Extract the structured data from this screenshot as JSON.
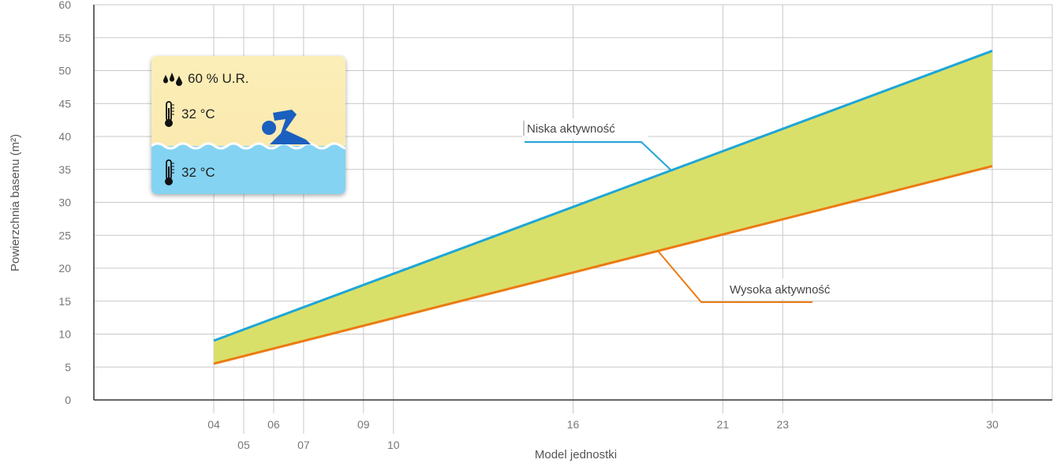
{
  "chart_data": {
    "type": "area",
    "xlabel": "Model jednostki",
    "ylabel": "Powierzchnia basenu (m²)",
    "ylim": [
      0,
      60
    ],
    "yticks": [
      0,
      5,
      10,
      15,
      20,
      25,
      30,
      35,
      40,
      45,
      50,
      55,
      60
    ],
    "x_categories": [
      {
        "label": "04",
        "value": 4
      },
      {
        "label": "05",
        "value": 5
      },
      {
        "label": "06",
        "value": 6
      },
      {
        "label": "07",
        "value": 7
      },
      {
        "label": "09",
        "value": 9
      },
      {
        "label": "10",
        "value": 10
      },
      {
        "label": "16",
        "value": 16
      },
      {
        "label": "21",
        "value": 21
      },
      {
        "label": "23",
        "value": 23
      },
      {
        "label": "30",
        "value": 30
      }
    ],
    "grid": true,
    "series": [
      {
        "name": "Niska aktywność",
        "color": "#1fa6d6",
        "x": [
          4,
          30
        ],
        "y": [
          9,
          53
        ]
      },
      {
        "name": "Wysoka aktywność",
        "color": "#ec7a12",
        "x": [
          4,
          30
        ],
        "y": [
          5.5,
          35.5
        ]
      }
    ],
    "fill_color": "#d9e06a"
  },
  "legend": {
    "humidity": "60 % U.R.",
    "air_temp": "32 °C",
    "water_temp": "32 °C",
    "humidity_icon": "water-drops-icon",
    "thermometer_icon": "thermometer-icon",
    "swimmer_icon": "swimmer-icon",
    "water_color": "#84d3f3",
    "air_color": "#fbeeb7",
    "swimmer_color": "#1b5fbf"
  }
}
